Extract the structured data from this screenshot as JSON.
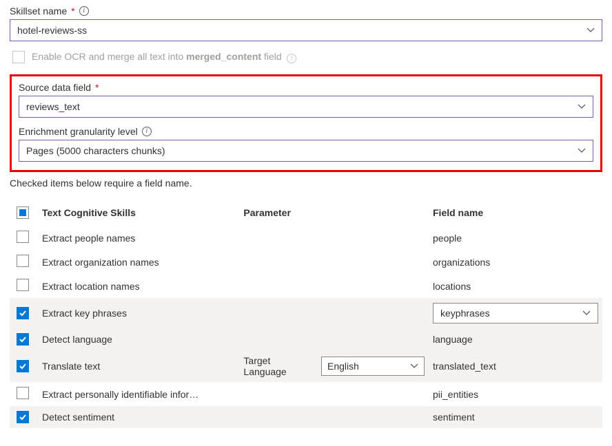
{
  "skillset": {
    "label": "Skillset name",
    "value": "hotel-reviews-ss"
  },
  "ocr": {
    "prefix": "Enable OCR and merge all text into",
    "bold": "merged_content",
    "suffix": "field"
  },
  "source": {
    "label": "Source data field",
    "value": "reviews_text"
  },
  "granularity": {
    "label": "Enrichment granularity level",
    "value": "Pages (5000 characters chunks)"
  },
  "hint": "Checked items below require a field name.",
  "headers": {
    "skill": "Text Cognitive Skills",
    "param": "Parameter",
    "field": "Field name"
  },
  "translate": {
    "param_label": "Target Language",
    "param_value": "English"
  },
  "rows": [
    {
      "label": "Extract people names",
      "field": "people",
      "checked": false,
      "alt": false
    },
    {
      "label": "Extract organization names",
      "field": "organizations",
      "checked": false,
      "alt": false
    },
    {
      "label": "Extract location names",
      "field": "locations",
      "checked": false,
      "alt": false
    },
    {
      "label": "Extract key phrases",
      "field": "keyphrases",
      "checked": true,
      "alt": true,
      "field_is_select": true
    },
    {
      "label": "Detect language",
      "field": "language",
      "checked": true,
      "alt": true
    },
    {
      "label": "Translate text",
      "field": "translated_text",
      "checked": true,
      "alt": true,
      "has_param": true
    },
    {
      "label": "Extract personally identifiable infor…",
      "field": "pii_entities",
      "checked": false,
      "alt": false
    },
    {
      "label": "Detect sentiment",
      "field": "sentiment",
      "checked": true,
      "alt": true
    }
  ]
}
